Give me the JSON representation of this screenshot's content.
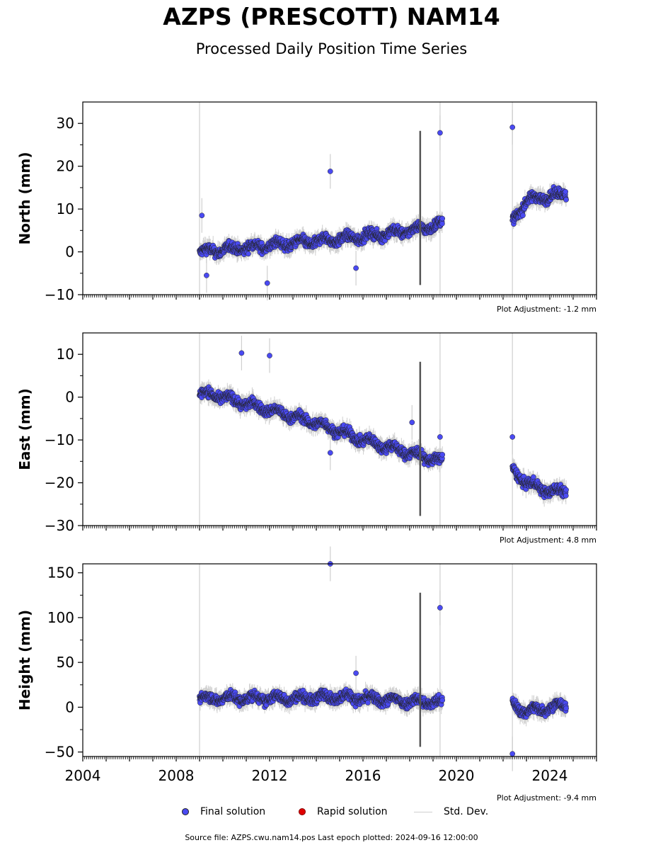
{
  "title": "AZPS (PRESCOTT) NAM14",
  "subtitle": "Processed Daily Position Time Series",
  "footer": "Source file: AZPS.cwu.nam14.pos  Last epoch plotted: 2024-09-16 12:00:00",
  "legend": {
    "final": "Final solution",
    "rapid": "Rapid solution",
    "stddev": "Std. Dev."
  },
  "colors": {
    "final_fill": "#4a4af2",
    "rapid_fill": "#e00000",
    "stddev_line": "#cfcfcf"
  },
  "chart_data": [
    {
      "type": "scatter",
      "ylabel": "North (mm)",
      "xlim": [
        2004.0,
        2026.0
      ],
      "ylim": [
        -10,
        35
      ],
      "yticks": [
        -10,
        0,
        10,
        20,
        30
      ],
      "adjustment": "Plot Adjustment: -1.2 mm",
      "xtick_labels_shown": false,
      "segments": [
        {
          "x": [
            2009.0,
            2011.0,
            2013.0,
            2015.0,
            2016.0,
            2018.0,
            2018.5,
            2019.4
          ],
          "y": [
            0,
            1,
            2,
            3,
            3.5,
            5,
            5.5,
            6.5
          ]
        },
        {
          "x": [
            2022.4,
            2023.0,
            2024.0,
            2024.7
          ],
          "y": [
            7,
            12,
            13,
            13.5
          ]
        }
      ],
      "outliers": [
        [
          2009.1,
          8.5
        ],
        [
          2009.3,
          -5.5
        ],
        [
          2011.9,
          -7.3
        ],
        [
          2014.6,
          18.8
        ],
        [
          2015.7,
          -3.8
        ],
        [
          2019.3,
          27.8
        ],
        [
          2022.4,
          29.1
        ]
      ]
    },
    {
      "type": "scatter",
      "ylabel": "East (mm)",
      "xlim": [
        2004.0,
        2026.0
      ],
      "ylim": [
        -30,
        15
      ],
      "yticks": [
        -30,
        -20,
        -10,
        0,
        10
      ],
      "adjustment": "Plot Adjustment: 4.8 mm",
      "xtick_labels_shown": false,
      "segments": [
        {
          "x": [
            2009.0,
            2010.0,
            2012.0,
            2014.0,
            2016.0,
            2018.0,
            2019.4
          ],
          "y": [
            1,
            0,
            -3,
            -6,
            -10,
            -13,
            -15
          ]
        },
        {
          "x": [
            2022.4,
            2023.0,
            2024.0,
            2024.7
          ],
          "y": [
            -17,
            -20,
            -22,
            -22
          ]
        }
      ],
      "outliers": [
        [
          2010.8,
          10.3
        ],
        [
          2012.0,
          9.7
        ],
        [
          2014.6,
          -13
        ],
        [
          2018.1,
          -5.9
        ],
        [
          2019.3,
          -9.3
        ],
        [
          2022.4,
          -9.3
        ]
      ]
    },
    {
      "type": "scatter",
      "ylabel": "Height (mm)",
      "xlim": [
        2004.0,
        2026.0
      ],
      "ylim": [
        -55,
        160
      ],
      "yticks": [
        -50,
        0,
        50,
        100,
        150
      ],
      "xticks": [
        2004,
        2008,
        2012,
        2016,
        2020,
        2024
      ],
      "adjustment": "Plot Adjustment: -9.4 mm",
      "xtick_labels_shown": true,
      "segments": [
        {
          "x": [
            2009.0,
            2011.0,
            2013.0,
            2015.0,
            2017.0,
            2019.4
          ],
          "y": [
            10,
            10,
            10,
            12,
            8,
            5
          ]
        },
        {
          "x": [
            2022.4,
            2023.0,
            2024.0,
            2024.7
          ],
          "y": [
            3,
            -5,
            0,
            2
          ]
        }
      ],
      "outliers": [
        [
          2014.6,
          160
        ],
        [
          2019.3,
          111
        ],
        [
          2022.4,
          -52
        ],
        [
          2015.7,
          38
        ]
      ]
    }
  ]
}
